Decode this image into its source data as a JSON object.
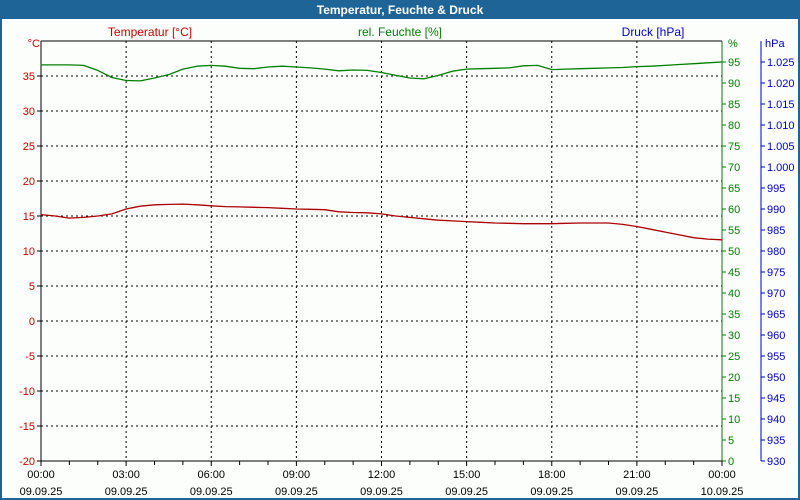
{
  "window": {
    "title": "Temperatur, Feuchte & Druck"
  },
  "legend": {
    "temperature": {
      "label": "Temperatur [°C]",
      "color": "#cc0000"
    },
    "humidity": {
      "label": "rel. Feuchte [%]",
      "color": "#008000"
    },
    "pressure": {
      "label": "Druck [hPa]",
      "color": "#0000cc"
    }
  },
  "axes": {
    "temperature_axis": {
      "unit": "°C",
      "min": -20,
      "max": 40,
      "step": 5,
      "top_label": 35,
      "color": "#cc0000",
      "side": "left"
    },
    "humidity_axis": {
      "unit": "%",
      "min": 0,
      "max": 100,
      "step": 5,
      "top_label": 95,
      "color": "#008000",
      "side": "right"
    },
    "pressure_axis": {
      "unit": "hPa",
      "min": 930,
      "max": 1030,
      "step": 5,
      "top_label": 1025,
      "color": "#0000cc",
      "side": "far-right",
      "thousands_separator": "."
    },
    "time_axis": {
      "major_step_hours": 3,
      "minor_step_hours": 1,
      "ticks": [
        {
          "time": "00:00",
          "date": "09.09.25"
        },
        {
          "time": "03:00",
          "date": "09.09.25"
        },
        {
          "time": "06:00",
          "date": "09.09.25"
        },
        {
          "time": "09:00",
          "date": "09.09.25"
        },
        {
          "time": "12:00",
          "date": "09.09.25"
        },
        {
          "time": "15:00",
          "date": "09.09.25"
        },
        {
          "time": "18:00",
          "date": "09.09.25"
        },
        {
          "time": "21:00",
          "date": "09.09.25"
        },
        {
          "time": "00:00",
          "date": "10.09.25"
        }
      ]
    }
  },
  "chart_data": {
    "type": "line",
    "title": "Temperatur, Feuchte & Druck",
    "x_unit": "hours",
    "x_range": [
      0,
      24
    ],
    "grid": true,
    "x": [
      0,
      0.5,
      1,
      1.5,
      2,
      2.5,
      3,
      3.5,
      4,
      4.5,
      5,
      5.5,
      6,
      6.5,
      7,
      7.5,
      8,
      8.5,
      9,
      9.5,
      10,
      10.5,
      11,
      11.5,
      12,
      12.5,
      13,
      13.5,
      14,
      14.5,
      15,
      15.5,
      16,
      16.5,
      17,
      17.5,
      18,
      18.5,
      19,
      19.5,
      20,
      20.5,
      21,
      21.5,
      22,
      22.5,
      23,
      23.5,
      24
    ],
    "series": [
      {
        "name": "Temperatur",
        "unit": "°C",
        "axis": "temperature_axis",
        "color": "#aa0000",
        "values": [
          15.2,
          15.0,
          14.7,
          14.8,
          15.0,
          15.3,
          16.0,
          16.4,
          16.6,
          16.65,
          16.7,
          16.6,
          16.45,
          16.35,
          16.3,
          16.25,
          16.2,
          16.1,
          16.0,
          15.95,
          15.9,
          15.6,
          15.5,
          15.45,
          15.3,
          15.0,
          14.8,
          14.6,
          14.4,
          14.3,
          14.2,
          14.1,
          14.0,
          13.95,
          13.9,
          13.9,
          13.9,
          13.95,
          14.0,
          14.0,
          14.0,
          13.8,
          13.5,
          13.1,
          12.7,
          12.3,
          11.9,
          11.7,
          11.6
        ]
      },
      {
        "name": "rel. Feuchte",
        "unit": "%",
        "axis": "humidity_axis",
        "color": "#008000",
        "values": [
          94.3,
          94.3,
          94.3,
          94.2,
          93.0,
          91.3,
          90.6,
          90.5,
          91.2,
          92.0,
          93.3,
          94.0,
          94.2,
          94.0,
          93.5,
          93.4,
          93.8,
          94.0,
          93.8,
          93.6,
          93.3,
          92.9,
          93.1,
          93.0,
          92.5,
          91.8,
          91.2,
          91.0,
          91.8,
          92.8,
          93.3,
          93.4,
          93.5,
          93.6,
          94.1,
          94.2,
          93.2,
          93.3,
          93.4,
          93.5,
          93.6,
          93.7,
          93.9,
          94.0,
          94.2,
          94.4,
          94.6,
          94.8,
          95.0
        ]
      }
    ]
  }
}
